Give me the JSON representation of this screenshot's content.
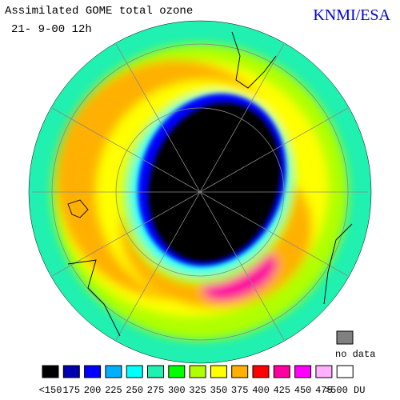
{
  "header": {
    "title": "Assimilated GOME total ozone",
    "date": "21- 9-00 12h",
    "credit": "KNMI/ESA"
  },
  "no_data": {
    "label": "no data",
    "color": "#808080"
  },
  "legend": {
    "items": [
      {
        "label": "<150",
        "color": "#000000"
      },
      {
        "label": "175",
        "color": "#0000b0"
      },
      {
        "label": "200",
        "color": "#0000ff"
      },
      {
        "label": "225",
        "color": "#00b0ff"
      },
      {
        "label": "250",
        "color": "#00ffff"
      },
      {
        "label": "275",
        "color": "#20f0b0"
      },
      {
        "label": "300",
        "color": "#00ff00"
      },
      {
        "label": "325",
        "color": "#b0ff00"
      },
      {
        "label": "350",
        "color": "#ffff00"
      },
      {
        "label": "375",
        "color": "#ffb000"
      },
      {
        "label": "400",
        "color": "#ff0000"
      },
      {
        "label": "425",
        "color": "#ff00a0"
      },
      {
        "label": "450",
        "color": "#ff00ff"
      },
      {
        "label": "475",
        "color": "#ffb0ff"
      },
      {
        "label": ">500 DU",
        "color": "#ffffff"
      }
    ]
  }
}
